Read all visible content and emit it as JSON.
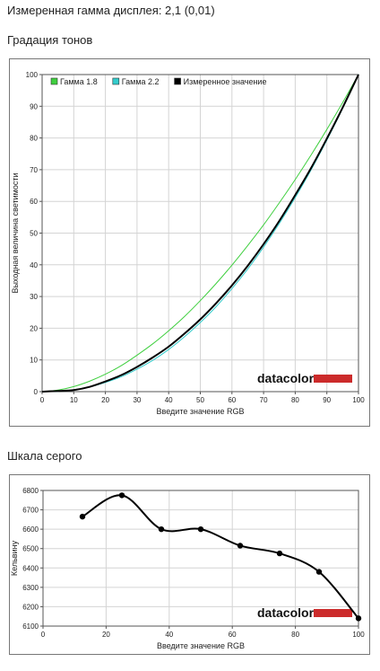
{
  "page": {
    "measured_gamma": "Измеренная гамма дисплея: 2,1 (0,01)",
    "tone_heading": "Градация тонов",
    "gray_heading": "Шкала серого"
  },
  "chart_data": [
    {
      "type": "line",
      "title": "",
      "xlabel": "Введите значение RGB",
      "ylabel": "Выходная величина светимости",
      "xlim": [
        0,
        100
      ],
      "ylim": [
        0,
        100
      ],
      "xticks": [
        "0",
        "10",
        "20",
        "30",
        "40",
        "50",
        "60",
        "70",
        "80",
        "90",
        "100"
      ],
      "yticks": [
        "0",
        "10",
        "20",
        "30",
        "40",
        "50",
        "60",
        "70",
        "80",
        "90",
        "100"
      ],
      "grid": true,
      "legend_position": "top-left",
      "logo": "datacolor",
      "series": [
        {
          "name": "Гамма 1.8",
          "color": "#3fcf3f",
          "x": [
            0,
            5,
            10,
            15,
            20,
            25,
            30,
            35,
            40,
            45,
            50,
            55,
            60,
            65,
            70,
            75,
            80,
            85,
            90,
            95,
            100
          ],
          "values": [
            0,
            0.5,
            1.6,
            3.3,
            5.5,
            8.2,
            11.5,
            15.1,
            19.2,
            23.7,
            28.7,
            34.1,
            39.9,
            46.1,
            52.6,
            59.6,
            66.9,
            74.6,
            82.7,
            91.2,
            100
          ]
        },
        {
          "name": "Гамма 2.2",
          "color": "#33cccc",
          "x": [
            0,
            5,
            10,
            15,
            20,
            25,
            30,
            35,
            40,
            45,
            50,
            55,
            60,
            65,
            70,
            75,
            80,
            85,
            90,
            95,
            100
          ],
          "values": [
            0,
            0.1,
            0.6,
            1.5,
            2.9,
            4.7,
            7.1,
            9.9,
            13.3,
            17.3,
            21.8,
            26.8,
            32.5,
            38.7,
            45.6,
            53.1,
            61.2,
            69.9,
            79.3,
            89.3,
            100
          ]
        },
        {
          "name": "Измеренное значение",
          "color": "#000000",
          "x": [
            0,
            5,
            10,
            15,
            20,
            25,
            30,
            35,
            40,
            45,
            50,
            55,
            60,
            65,
            70,
            75,
            80,
            85,
            90,
            95,
            100
          ],
          "values": [
            0,
            0.2,
            0.5,
            1.5,
            3.2,
            5.2,
            7.8,
            10.8,
            14.2,
            18.3,
            22.8,
            27.9,
            33.5,
            39.7,
            46.5,
            53.9,
            62,
            70.5,
            79.8,
            89.6,
            100
          ]
        }
      ]
    },
    {
      "type": "line",
      "title": "",
      "xlabel": "Введите значение RGB",
      "ylabel": "Кельвину",
      "xlim": [
        0,
        100
      ],
      "ylim": [
        6100,
        6800
      ],
      "xticks": [
        "0",
        "20",
        "40",
        "60",
        "80",
        "100"
      ],
      "yticks": [
        "6100",
        "6200",
        "6300",
        "6400",
        "6500",
        "6600",
        "6700",
        "6800"
      ],
      "grid": true,
      "logo": "datacolor",
      "series": [
        {
          "name": "",
          "color": "#000000",
          "markers": true,
          "x": [
            12.5,
            25,
            37.5,
            50,
            62.5,
            75,
            87.5,
            100
          ],
          "values": [
            6665,
            6775,
            6600,
            6600,
            6515,
            6475,
            6380,
            6140
          ]
        }
      ]
    }
  ]
}
